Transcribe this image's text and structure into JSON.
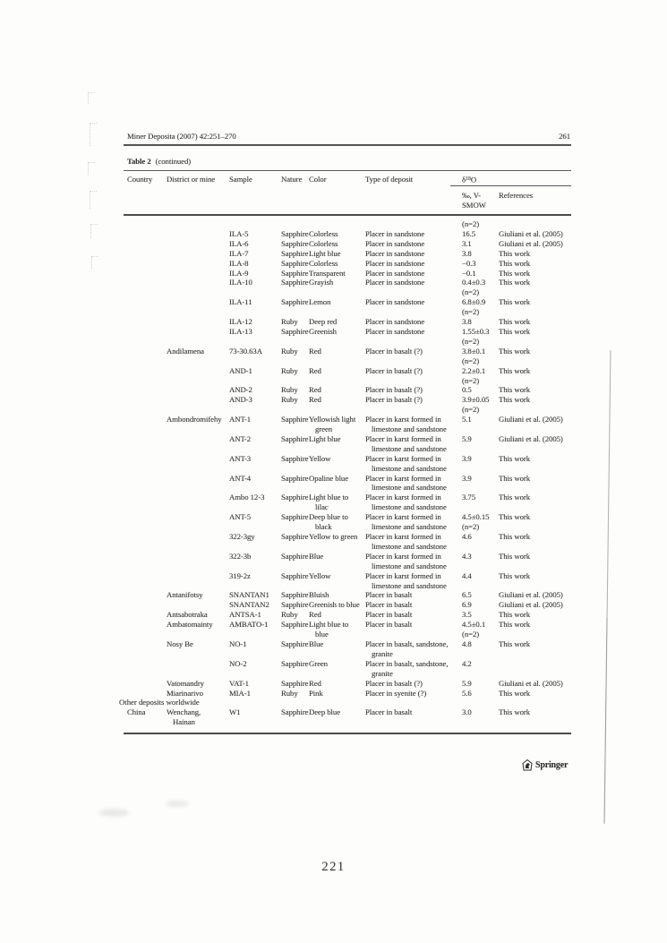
{
  "page": {
    "journal_header": "Miner Deposita (2007) 42:251–270",
    "header_page_number": "261",
    "footer_page_number": "221",
    "publisher_logo": "Springer"
  },
  "colors": {
    "ink": "#333333",
    "rule_gray": "#4c4c4c",
    "paper": "#fdfdfc"
  },
  "table": {
    "caption_label": "Table 2",
    "caption_suffix": "(continued)",
    "headers": {
      "country": "Country",
      "district": "District or mine",
      "sample": "Sample",
      "nature": "Nature",
      "color": "Color",
      "deposit": "Type of deposit",
      "d18o_delta": "δ",
      "d18o_sup": "18",
      "d18o_base": "O",
      "unit_line1": "‰, V-",
      "unit_line2": "SMOW",
      "references": "References"
    },
    "rows": [
      {
        "d18o": [
          "(n=2)"
        ]
      },
      {
        "sample": "ILA-5",
        "nature": "Sapphire",
        "color": [
          "Colorless"
        ],
        "deposit": [
          "Placer in sandstone"
        ],
        "d18o": [
          "16.5"
        ],
        "reference": "Giuliani et al. (2005)"
      },
      {
        "sample": "ILA-6",
        "nature": "Sapphire",
        "color": [
          "Colorless"
        ],
        "deposit": [
          "Placer in sandstone"
        ],
        "d18o": [
          "3.1"
        ],
        "reference": "Giuliani et al. (2005)"
      },
      {
        "sample": "ILA-7",
        "nature": "Sapphire",
        "color": [
          "Light blue"
        ],
        "deposit": [
          "Placer in sandstone"
        ],
        "d18o": [
          "3.8"
        ],
        "reference": "This work"
      },
      {
        "sample": "ILA-8",
        "nature": "Sapphire",
        "color": [
          "Colorless"
        ],
        "deposit": [
          "Placer in sandstone"
        ],
        "d18o": [
          "−0.3"
        ],
        "reference": "This work"
      },
      {
        "sample": "ILA-9",
        "nature": "Sapphire",
        "color": [
          "Transparent"
        ],
        "deposit": [
          "Placer in sandstone"
        ],
        "d18o": [
          "−0.1"
        ],
        "reference": "This work"
      },
      {
        "sample": "ILA-10",
        "nature": "Sapphire",
        "color": [
          "Grayish"
        ],
        "deposit": [
          "Placer in sandstone"
        ],
        "d18o": [
          "0.4±0.3",
          "(n=2)"
        ],
        "reference": "This work"
      },
      {
        "sample": "ILA-11",
        "nature": "Sapphire",
        "color": [
          "Lemon"
        ],
        "deposit": [
          "Placer in sandstone"
        ],
        "d18o": [
          "6.8±0.9",
          "(n=2)"
        ],
        "reference": "This work"
      },
      {
        "sample": "ILA-12",
        "nature": "Ruby",
        "color": [
          "Deep red"
        ],
        "deposit": [
          "Placer in sandstone"
        ],
        "d18o": [
          "3.8"
        ],
        "reference": "This work"
      },
      {
        "sample": "ILA-13",
        "nature": "Sapphire",
        "color": [
          "Greenish"
        ],
        "deposit": [
          "Placer in sandstone"
        ],
        "d18o": [
          "1.55±0.3",
          "(n=2)"
        ],
        "reference": "This work"
      },
      {
        "district": [
          "Andilamena"
        ],
        "sample": "73-30.63A",
        "nature": "Ruby",
        "color": [
          "Red"
        ],
        "deposit": [
          "Placer in basalt (?)"
        ],
        "d18o": [
          "3.8±0.1",
          "(n=2)"
        ],
        "reference": "This work"
      },
      {
        "sample": "AND-1",
        "nature": "Ruby",
        "color": [
          "Red"
        ],
        "deposit": [
          "Placer in basalt (?)"
        ],
        "d18o": [
          "2.2±0.1",
          "(n=2)"
        ],
        "reference": "This work"
      },
      {
        "sample": "AND-2",
        "nature": "Ruby",
        "color": [
          "Red"
        ],
        "deposit": [
          "Placer in basalt (?)"
        ],
        "d18o": [
          "0.5"
        ],
        "reference": "This work"
      },
      {
        "sample": "AND-3",
        "nature": "Ruby",
        "color": [
          "Red"
        ],
        "deposit": [
          "Placer in basalt (?)"
        ],
        "d18o": [
          "3.9±0.05",
          "(n=2)"
        ],
        "reference": "This work"
      },
      {
        "district": [
          "Ambondromifehy"
        ],
        "sample": "ANT-1",
        "nature": "Sapphire",
        "color": [
          "Yellowish light",
          "green"
        ],
        "deposit": [
          "Placer in karst formed in",
          "limestone and sandstone"
        ],
        "d18o": [
          "5.1"
        ],
        "reference": "Giuliani et al. (2005)"
      },
      {
        "sample": "ANT-2",
        "nature": "Sapphire",
        "color": [
          "Light blue"
        ],
        "deposit": [
          "Placer in karst formed in",
          "limestone and sandstone"
        ],
        "d18o": [
          "5.9"
        ],
        "reference": "Giuliani et al. (2005)"
      },
      {
        "sample": "ANT-3",
        "nature": "Sapphire",
        "color": [
          "Yellow"
        ],
        "deposit": [
          "Placer in karst formed in",
          "limestone and sandstone"
        ],
        "d18o": [
          "3.9"
        ],
        "reference": "This work"
      },
      {
        "sample": "ANT-4",
        "nature": "Sapphire",
        "color": [
          "Opaline blue"
        ],
        "deposit": [
          "Placer in karst formed in",
          "limestone and sandstone"
        ],
        "d18o": [
          "3.9"
        ],
        "reference": "This work"
      },
      {
        "sample": "Ambo 12-3",
        "nature": "Sapphire",
        "color": [
          "Light blue to",
          "lilac"
        ],
        "deposit": [
          "Placer in karst formed in",
          "limestone and sandstone"
        ],
        "d18o": [
          "3.75"
        ],
        "reference": "This work"
      },
      {
        "sample": "ANT-5",
        "nature": "Sapphire",
        "color": [
          "Deep blue to",
          "black"
        ],
        "deposit": [
          "Placer in karst formed in",
          "limestone and sandstone"
        ],
        "d18o": [
          "4.5±0.15",
          "(n=2)"
        ],
        "reference": "This work"
      },
      {
        "sample": "322-3gy",
        "nature": "Sapphire",
        "color": [
          "Yellow to green"
        ],
        "deposit": [
          "Placer in karst formed in",
          "limestone and sandstone"
        ],
        "d18o": [
          "4.6"
        ],
        "reference": "This work"
      },
      {
        "sample": "322-3b",
        "nature": "Sapphire",
        "color": [
          "Blue"
        ],
        "deposit": [
          "Placer in karst formed in",
          "limestone and sandstone"
        ],
        "d18o": [
          "4.3"
        ],
        "reference": "This work"
      },
      {
        "sample": "319-2z",
        "nature": "Sapphire",
        "color": [
          "Yellow"
        ],
        "deposit": [
          "Placer in karst formed in",
          "limestone and sandstone"
        ],
        "d18o": [
          "4.4"
        ],
        "reference": "This work"
      },
      {
        "district": [
          "Antanifotsy"
        ],
        "sample": "SNANTAN1",
        "nature": "Sapphire",
        "color": [
          "Bluish"
        ],
        "deposit": [
          "Placer in basalt"
        ],
        "d18o": [
          "6.5"
        ],
        "reference": "Giuliani et al. (2005)"
      },
      {
        "sample": "SNANTAN2",
        "nature": "Sapphire",
        "color": [
          "Greenish to blue"
        ],
        "deposit": [
          "Placer in basalt"
        ],
        "d18o": [
          "6.9"
        ],
        "reference": "Giuliani et al. (2005)"
      },
      {
        "district": [
          "Antsabotraka"
        ],
        "sample": "ANTSA-1",
        "nature": "Ruby",
        "color": [
          "Red"
        ],
        "deposit": [
          "Placer in basalt"
        ],
        "d18o": [
          "3.5"
        ],
        "reference": "This work"
      },
      {
        "district": [
          "Ambatomainty"
        ],
        "sample": "AMBATO-1",
        "nature": "Sapphire",
        "color": [
          "Light blue to",
          "blue"
        ],
        "deposit": [
          "Placer in basalt"
        ],
        "d18o": [
          "4.5±0.1",
          "(n=2)"
        ],
        "reference": "This work"
      },
      {
        "district": [
          "Nosy Be"
        ],
        "sample": "NO-1",
        "nature": "Sapphire",
        "color": [
          "Blue"
        ],
        "deposit": [
          "Placer in basalt, sandstone,",
          "granite"
        ],
        "d18o": [
          "4.8"
        ],
        "reference": "This work"
      },
      {
        "sample": "NO-2",
        "nature": "Sapphire",
        "color": [
          "Green"
        ],
        "deposit": [
          "Placer in basalt, sandstone,",
          "granite"
        ],
        "d18o": [
          "4.2"
        ],
        "reference": ""
      },
      {
        "district": [
          "Vatomandry"
        ],
        "sample": "VAT-1",
        "nature": "Sapphire",
        "color": [
          "Red"
        ],
        "deposit": [
          "Placer in basalt (?)"
        ],
        "d18o": [
          "5.9"
        ],
        "reference": "Giuliani et al. (2005)"
      },
      {
        "district": [
          "Miarinarivo"
        ],
        "sample": "MIA-1",
        "nature": "Ruby",
        "color": [
          "Pink"
        ],
        "deposit": [
          "Placer in syenite (?)"
        ],
        "d18o": [
          "5.6"
        ],
        "reference": "This work"
      },
      {
        "section": "Other deposits worldwide"
      },
      {
        "country": "China",
        "district": [
          "Wenchang,",
          "Hainan"
        ],
        "sample": "W1",
        "nature": "Sapphire",
        "color": [
          "Deep blue"
        ],
        "deposit": [
          "Placer in basalt"
        ],
        "d18o": [
          "3.0"
        ],
        "reference": "This work"
      }
    ]
  }
}
